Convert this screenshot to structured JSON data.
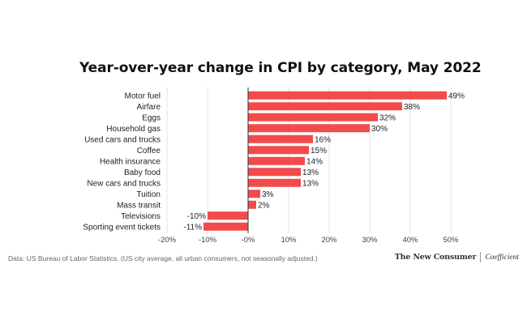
{
  "page": {
    "title": "Year-over-year change in CPI by category, May 2022",
    "source_note": "Data: US Bureau of Labor Statistics. (US city average, all urban consumers, not seasonally adjusted.)",
    "brand_primary": "The New Consumer",
    "brand_secondary": "Coefficient"
  },
  "colors": {
    "bar": "#f24b4b",
    "grid": "#e6e6e6",
    "zero_line": "#333333"
  },
  "chart_data": {
    "type": "bar",
    "orientation": "horizontal",
    "title": "Year-over-year change in CPI by category, May 2022",
    "xlabel": "",
    "ylabel": "",
    "categories": [
      "Motor fuel",
      "Airfare",
      "Eggs",
      "Household gas",
      "Used cars and trucks",
      "Coffee",
      "Health insurance",
      "Baby food",
      "New cars and trucks",
      "Tuition",
      "Mass transit",
      "Televisions",
      "Sporting event tickets"
    ],
    "values": [
      49,
      38,
      32,
      30,
      16,
      15,
      14,
      13,
      13,
      3,
      2,
      -10,
      -11
    ],
    "value_labels": [
      "49%",
      "38%",
      "32%",
      "30%",
      "16%",
      "15%",
      "14%",
      "13%",
      "13%",
      "3%",
      "2%",
      "-10%",
      "-11%"
    ],
    "xlim": [
      -20,
      50
    ],
    "xticks": [
      -20,
      -10,
      0,
      10,
      20,
      30,
      40,
      50
    ],
    "xtick_labels": [
      "-20%",
      "-10%",
      "-0%",
      "10%",
      "20%",
      "30%",
      "40%",
      "50%"
    ],
    "grid": true,
    "legend": "none"
  }
}
